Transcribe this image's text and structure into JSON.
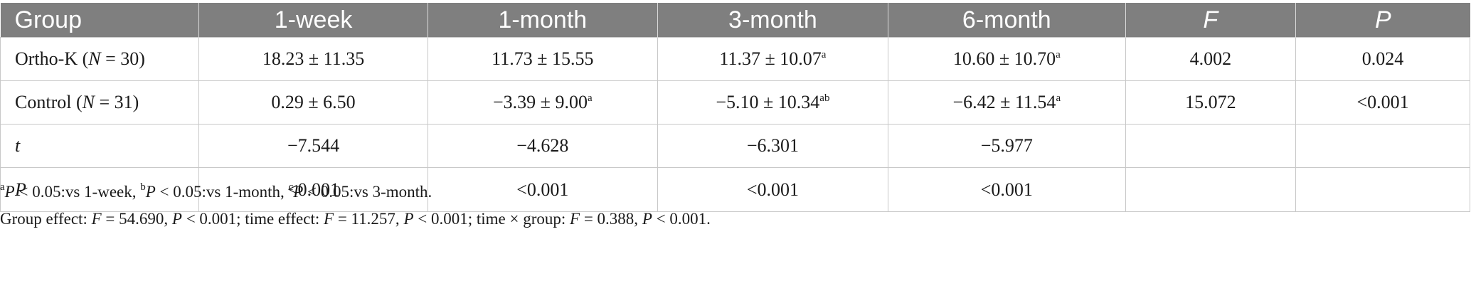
{
  "table": {
    "headers": [
      "Group",
      "1-week",
      "1-month",
      "3-month",
      "6-month",
      "F",
      "P"
    ],
    "rows": [
      {
        "group_main": "Ortho-K (",
        "group_var": "N",
        "group_rest": " = 30)",
        "cells": [
          {
            "value": "18.23 ± 11.35",
            "sup": ""
          },
          {
            "value": "11.73 ± 15.55",
            "sup": ""
          },
          {
            "value": "11.37 ± 10.07",
            "sup": "a"
          },
          {
            "value": "10.60 ± 10.70",
            "sup": "a"
          },
          {
            "value": "4.002",
            "sup": ""
          },
          {
            "value": "0.024",
            "sup": ""
          }
        ]
      },
      {
        "group_main": "Control (",
        "group_var": "N",
        "group_rest": " = 31)",
        "cells": [
          {
            "value": "0.29 ± 6.50",
            "sup": ""
          },
          {
            "value": "−3.39 ± 9.00",
            "sup": "a"
          },
          {
            "value": "−5.10 ± 10.34",
            "sup": "ab"
          },
          {
            "value": "−6.42 ± 11.54",
            "sup": "a"
          },
          {
            "value": "15.072",
            "sup": ""
          },
          {
            "value": "<0.001",
            "sup": ""
          }
        ]
      },
      {
        "group_label": "t",
        "cells": [
          {
            "value": "−7.544"
          },
          {
            "value": "−4.628"
          },
          {
            "value": "−6.301"
          },
          {
            "value": "−5.977"
          },
          {
            "value": ""
          },
          {
            "value": ""
          }
        ]
      },
      {
        "group_label": "P",
        "cells": [
          {
            "value": "<0.001"
          },
          {
            "value": "<0.001"
          },
          {
            "value": "<0.001"
          },
          {
            "value": "<0.001"
          },
          {
            "value": ""
          },
          {
            "value": ""
          }
        ]
      }
    ]
  },
  "footnotes": {
    "line1": {
      "a_sup": "a",
      "a_var": "P",
      "a_text": " < 0.05:vs 1-week, ",
      "b_sup": "b",
      "b_var": "P",
      "b_text": " < 0.05:vs 1-month, ",
      "c_sup": "c",
      "c_var": "P",
      "c_text": " < 0.05:vs 3-month."
    },
    "line2": {
      "t1": "Group effect: ",
      "v1": "F",
      "t2": " = 54.690, ",
      "v2": "P",
      "t3": " < 0.001; time effect: ",
      "v3": "F",
      "t4": " = 11.257, ",
      "v4": "P",
      "t5": " < 0.001; time × group: ",
      "v5": "F",
      "t6": " = 0.388, ",
      "v6": "P",
      "t7": " < 0.001."
    }
  }
}
